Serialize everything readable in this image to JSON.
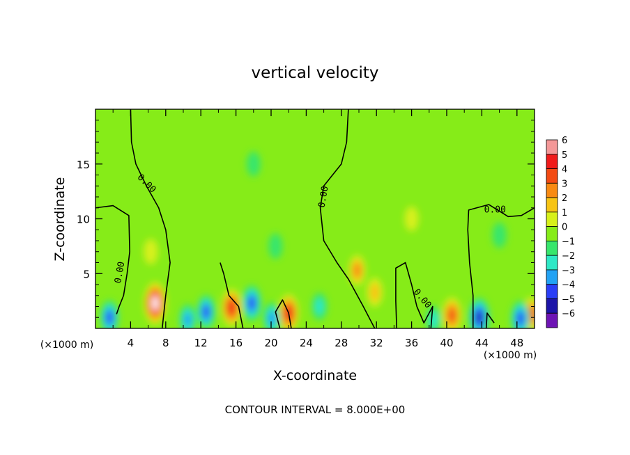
{
  "chart_data": {
    "type": "heatmap",
    "title": "vertical velocity",
    "xlabel": "X-coordinate",
    "ylabel": "Z-coordinate",
    "x_unit_left": "(×1000 m)",
    "x_unit_right": "(×1000 m)",
    "xlim": [
      0,
      50
    ],
    "ylim": [
      0,
      20
    ],
    "x_ticks": [
      {
        "value": 4,
        "label": "4"
      },
      {
        "value": 8,
        "label": "8"
      },
      {
        "value": 12,
        "label": "12"
      },
      {
        "value": 16,
        "label": "16"
      },
      {
        "value": 20,
        "label": "20"
      },
      {
        "value": 24,
        "label": "24"
      },
      {
        "value": 28,
        "label": "28"
      },
      {
        "value": 32,
        "label": "32"
      },
      {
        "value": 36,
        "label": "36"
      },
      {
        "value": 40,
        "label": "40"
      },
      {
        "value": 44,
        "label": "44"
      },
      {
        "value": 48,
        "label": "48"
      }
    ],
    "y_ticks": [
      {
        "value": 5,
        "label": "5"
      },
      {
        "value": 10,
        "label": "10"
      },
      {
        "value": 15,
        "label": "15"
      }
    ],
    "colorbar": {
      "levels": [
        6,
        5,
        4,
        3,
        2,
        1,
        0,
        -1,
        -2,
        -3,
        -4,
        -5,
        -6
      ],
      "labels": [
        "6",
        "5",
        "4",
        "3",
        "2",
        "1",
        "0",
        "−1",
        "−2",
        "−3",
        "−4",
        "−5",
        "−6"
      ],
      "colors": [
        "#f49898",
        "#f01a1a",
        "#f34a12",
        "#f88a12",
        "#f7c414",
        "#d7f01a",
        "#86ec18",
        "#38e66c",
        "#2ee8c6",
        "#22a2f4",
        "#2a3ef6",
        "#1c14a8",
        "#6e14b4"
      ]
    },
    "background_value": 0,
    "contour_label": "0.00",
    "contour_interval_text": "CONTOUR INTERVAL = 8.000E+00",
    "features": [
      {
        "x": 6.8,
        "z": 2.3,
        "value": 6
      },
      {
        "x": 15.5,
        "z": 1.9,
        "value": 4.5
      },
      {
        "x": 22.0,
        "z": 1.4,
        "value": 4.5
      },
      {
        "x": 29.8,
        "z": 5.3,
        "value": 2.5
      },
      {
        "x": 31.8,
        "z": 3.3,
        "value": 2
      },
      {
        "x": 40.6,
        "z": 1.2,
        "value": 4
      },
      {
        "x": 49.7,
        "z": 1.3,
        "value": 3.5
      },
      {
        "x": 6.3,
        "z": 7.0,
        "value": 1
      },
      {
        "x": 1.6,
        "z": 1.0,
        "value": -3.5
      },
      {
        "x": 12.6,
        "z": 1.5,
        "value": -3.5
      },
      {
        "x": 17.8,
        "z": 2.3,
        "value": -4
      },
      {
        "x": 20.1,
        "z": 0.9,
        "value": -3
      },
      {
        "x": 10.5,
        "z": 0.8,
        "value": -2.5
      },
      {
        "x": 25.5,
        "z": 2.0,
        "value": -1.5
      },
      {
        "x": 43.7,
        "z": 1.0,
        "value": -5
      },
      {
        "x": 48.4,
        "z": 0.9,
        "value": -4
      },
      {
        "x": 38.5,
        "z": 0.8,
        "value": -1.5
      },
      {
        "x": 20.5,
        "z": 7.5,
        "value": -1
      },
      {
        "x": 46.0,
        "z": 8.5,
        "value": -1
      },
      {
        "x": 18.0,
        "z": 15.0,
        "value": -0.8
      },
      {
        "x": 36.0,
        "z": 10.0,
        "value": 0.8
      }
    ],
    "zero_contours": [
      [
        [
          4.0,
          20.0
        ],
        [
          4.1,
          17.0
        ],
        [
          4.6,
          15.0
        ],
        [
          5.8,
          13.0
        ],
        [
          7.2,
          11.0
        ],
        [
          8.0,
          9.0
        ],
        [
          8.5,
          6.0
        ],
        [
          8.0,
          3.0
        ],
        [
          7.6,
          0.0
        ]
      ],
      [
        [
          0.0,
          11.0
        ],
        [
          2.0,
          11.2
        ],
        [
          3.8,
          10.3
        ],
        [
          3.9,
          7.0
        ],
        [
          3.6,
          5.0
        ],
        [
          3.2,
          3.0
        ],
        [
          2.7,
          2.0
        ],
        [
          2.4,
          1.3
        ]
      ],
      [
        [
          28.8,
          20.0
        ],
        [
          28.6,
          17.0
        ],
        [
          28.0,
          15.0
        ],
        [
          26.0,
          13.0
        ],
        [
          25.6,
          11.0
        ],
        [
          26.0,
          8.0
        ],
        [
          27.5,
          6.0
        ],
        [
          28.8,
          4.5
        ],
        [
          30.5,
          2.0
        ],
        [
          31.8,
          0.0
        ]
      ],
      [
        [
          14.2,
          6.0
        ],
        [
          14.6,
          5.0
        ],
        [
          15.2,
          3.0
        ],
        [
          16.3,
          2.0
        ],
        [
          16.8,
          0.0
        ]
      ],
      [
        [
          34.3,
          0.0
        ],
        [
          34.2,
          2.5
        ],
        [
          34.2,
          5.5
        ],
        [
          35.3,
          6.0
        ],
        [
          36.0,
          4.0
        ],
        [
          36.6,
          2.0
        ],
        [
          37.4,
          0.5
        ],
        [
          38.4,
          2.0
        ],
        [
          38.2,
          0.0
        ]
      ],
      [
        [
          43.0,
          0.0
        ],
        [
          43.0,
          3.0
        ],
        [
          42.6,
          6.0
        ],
        [
          42.4,
          9.0
        ],
        [
          42.5,
          10.8
        ],
        [
          44.8,
          11.3
        ],
        [
          47.0,
          10.2
        ],
        [
          48.5,
          10.3
        ],
        [
          50.0,
          11.0
        ]
      ],
      [
        [
          21.0,
          0.0
        ],
        [
          20.5,
          1.5
        ],
        [
          21.3,
          2.6
        ],
        [
          22.0,
          1.4
        ],
        [
          22.3,
          0.0
        ]
      ],
      [
        [
          44.5,
          0.0
        ],
        [
          44.6,
          1.4
        ],
        [
          45.4,
          0.5
        ]
      ]
    ],
    "contour_labels": [
      {
        "x": 5.8,
        "z": 13.2,
        "rotate": 45,
        "text": "0.00"
      },
      {
        "x": 2.8,
        "z": 5.1,
        "rotate": -80,
        "text": "0.00"
      },
      {
        "x": 26.0,
        "z": 12.0,
        "rotate": -80,
        "text": "0.00"
      },
      {
        "x": 37.2,
        "z": 2.7,
        "rotate": 50,
        "text": "0.00"
      },
      {
        "x": 45.5,
        "z": 10.8,
        "rotate": 0,
        "text": "0.00"
      }
    ]
  }
}
